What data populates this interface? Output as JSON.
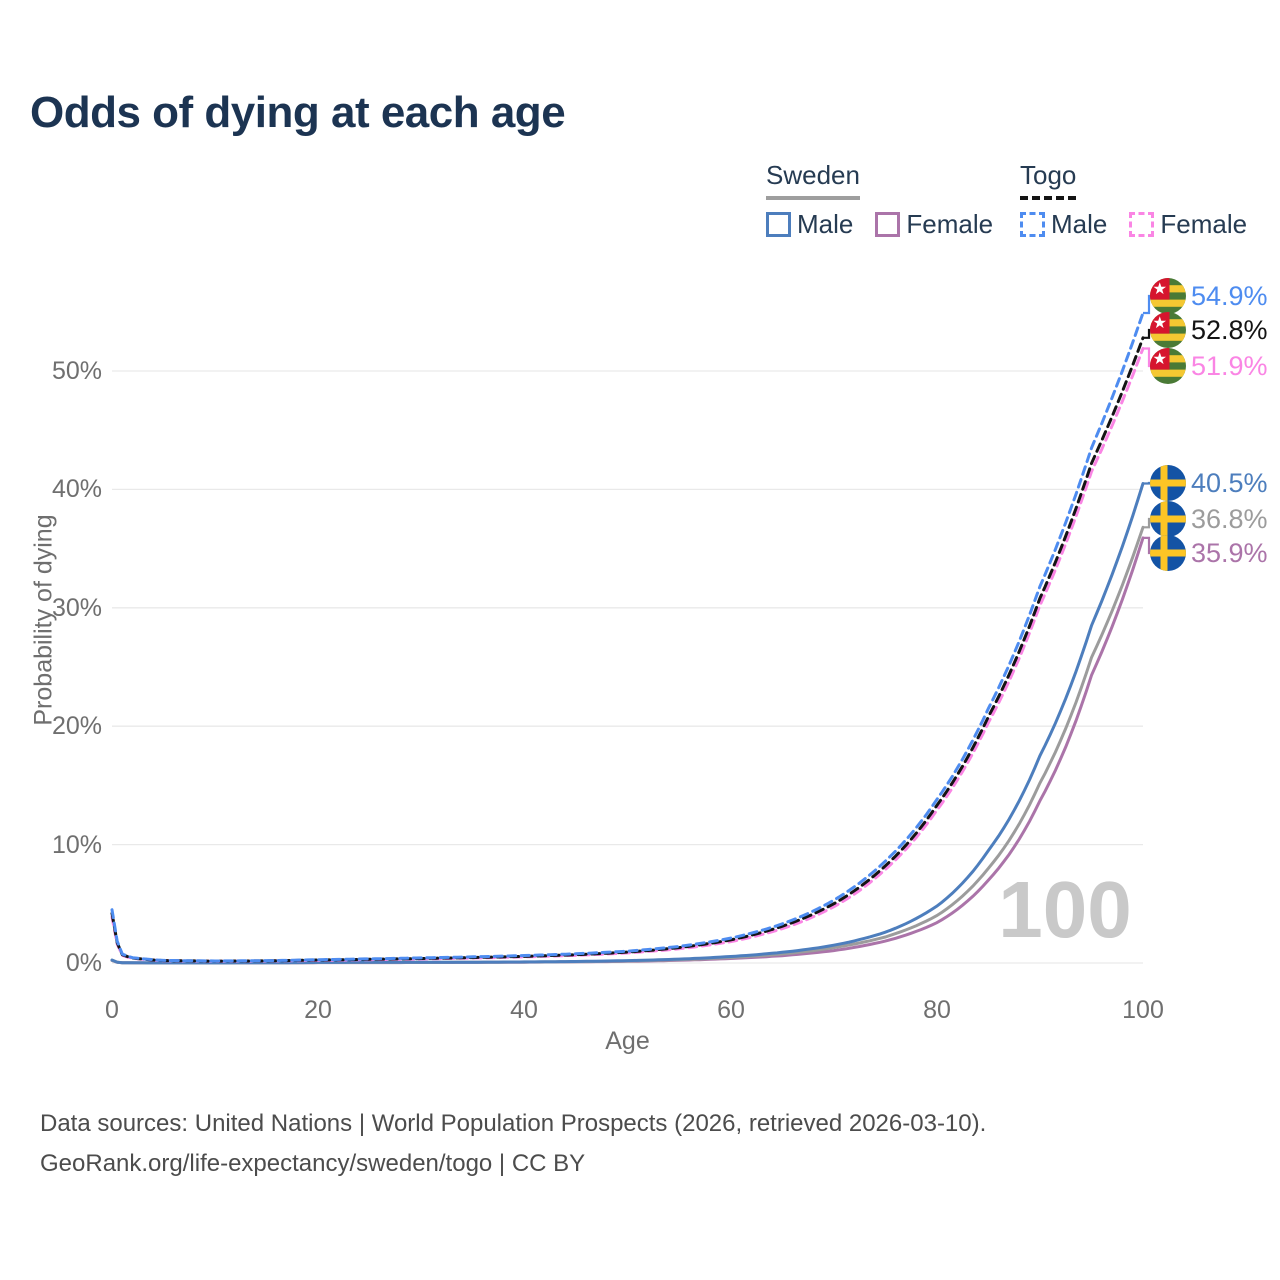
{
  "title": "Odds of dying at each age",
  "watermark_age": "100",
  "legend": {
    "groups": [
      {
        "label": "Sweden",
        "line_style": "solid",
        "line_color": "#9e9e9e",
        "items": [
          {
            "label": "Male",
            "color": "#4d7ebd",
            "dash": false
          },
          {
            "label": "Female",
            "color": "#ab74a9",
            "dash": false
          }
        ]
      },
      {
        "label": "Togo",
        "line_style": "dashed",
        "line_color": "#141414",
        "items": [
          {
            "label": "Male",
            "color": "#4e8cf0",
            "dash": true
          },
          {
            "label": "Female",
            "color": "#fa85e4",
            "dash": true
          }
        ]
      }
    ]
  },
  "footer": {
    "line1": "Data sources: United Nations | World Population Prospects (2026, retrieved 2026-03-10).",
    "line2": "GeoRank.org/life-expectancy/sweden/togo | CC BY"
  },
  "colors": {
    "title": "#1c3452",
    "legend_text": "#263b52",
    "axis_text": "#6f6f6f",
    "gridline": "#e9e9e9",
    "watermark": "#c9c9c9",
    "footer_text": "#4c4c4c"
  },
  "chart_data": {
    "type": "line",
    "title": "Odds of dying at each age",
    "xlabel": "Age",
    "ylabel": "Probability of dying",
    "xlim": [
      0,
      100
    ],
    "ylim_pct": [
      0,
      57
    ],
    "x_ticks": [
      0,
      20,
      40,
      60,
      80,
      100
    ],
    "y_ticks_pct": [
      0,
      10,
      20,
      30,
      40,
      50
    ],
    "grid": "horizontal-only",
    "legend_position": "top-right",
    "knot_ages": [
      0,
      1,
      2,
      5,
      10,
      15,
      20,
      25,
      30,
      35,
      40,
      45,
      50,
      55,
      60,
      65,
      70,
      75,
      80,
      85,
      90,
      95,
      100
    ],
    "series": [
      {
        "id": "togo-male",
        "country": "Togo",
        "sex": "Male",
        "flag": "togo",
        "color": "#4e8cf0",
        "dash": true,
        "end_label": "54.9%",
        "values_pct": [
          4.5,
          0.75,
          0.45,
          0.22,
          0.17,
          0.2,
          0.28,
          0.35,
          0.43,
          0.52,
          0.63,
          0.78,
          1.0,
          1.4,
          2.1,
          3.3,
          5.3,
          8.6,
          13.8,
          21.5,
          31.8,
          43.5,
          54.9
        ]
      },
      {
        "id": "togo-all",
        "country": "Togo",
        "sex": "Both sexes",
        "flag": "togo",
        "color": "#141414",
        "dash": true,
        "end_label": "52.8%",
        "values_pct": [
          4.2,
          0.7,
          0.42,
          0.2,
          0.16,
          0.18,
          0.25,
          0.31,
          0.38,
          0.46,
          0.56,
          0.7,
          0.92,
          1.3,
          1.95,
          3.1,
          5.0,
          8.2,
          13.3,
          20.8,
          30.8,
          42.2,
          52.8
        ]
      },
      {
        "id": "togo-female",
        "country": "Togo",
        "sex": "Female",
        "flag": "togo",
        "color": "#fa85e4",
        "dash": true,
        "end_label": "51.9%",
        "values_pct": [
          3.9,
          0.65,
          0.4,
          0.19,
          0.15,
          0.17,
          0.22,
          0.28,
          0.34,
          0.42,
          0.52,
          0.65,
          0.85,
          1.2,
          1.8,
          2.9,
          4.75,
          7.9,
          12.9,
          20.3,
          30.2,
          41.5,
          51.9
        ]
      },
      {
        "id": "sweden-male",
        "country": "Sweden",
        "sex": "Male",
        "flag": "sweden",
        "color": "#4d7ebd",
        "dash": false,
        "end_label": "40.5%",
        "values_pct": [
          0.25,
          0.02,
          0.015,
          0.01,
          0.01,
          0.02,
          0.05,
          0.06,
          0.06,
          0.07,
          0.09,
          0.13,
          0.2,
          0.33,
          0.55,
          0.9,
          1.5,
          2.6,
          4.8,
          9.5,
          17.5,
          28.5,
          40.5
        ]
      },
      {
        "id": "sweden-all",
        "country": "Sweden",
        "sex": "Both sexes",
        "flag": "sweden",
        "color": "#9c9c9c",
        "dash": false,
        "end_label": "36.8%",
        "values_pct": [
          0.23,
          0.018,
          0.013,
          0.009,
          0.009,
          0.016,
          0.04,
          0.05,
          0.05,
          0.06,
          0.08,
          0.11,
          0.17,
          0.28,
          0.46,
          0.76,
          1.3,
          2.2,
          4.0,
          8.0,
          15.2,
          25.8,
          36.8
        ]
      },
      {
        "id": "sweden-female",
        "country": "Sweden",
        "sex": "Female",
        "flag": "sweden",
        "color": "#ab74a9",
        "dash": false,
        "end_label": "35.9%",
        "values_pct": [
          0.21,
          0.016,
          0.012,
          0.008,
          0.008,
          0.013,
          0.03,
          0.035,
          0.04,
          0.05,
          0.07,
          0.1,
          0.14,
          0.23,
          0.38,
          0.62,
          1.05,
          1.85,
          3.4,
          7.0,
          13.7,
          24.3,
          35.9
        ]
      }
    ]
  }
}
